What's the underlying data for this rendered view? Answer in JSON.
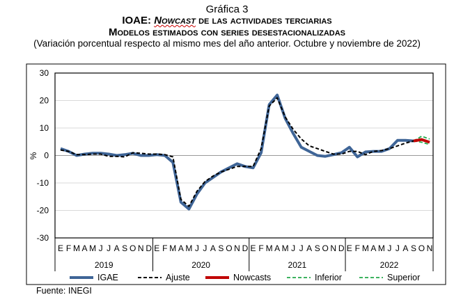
{
  "header": {
    "figure_label": "Gráfica 3",
    "title_prefix": "IOAE: ",
    "title_emph": "Nowcast",
    "title_rest": " de las actividades terciarias",
    "subtitle": "Modelos estimados con series desestacionalizadas",
    "note": "(Variación porcentual respecto al mismo mes del año anterior. Octubre y noviembre de 2022)"
  },
  "source": "Fuente: INEGI",
  "chart_data": {
    "type": "line",
    "ylabel": "%",
    "ylim": [
      -30,
      30
    ],
    "yticks": [
      30,
      20,
      10,
      0,
      -10,
      -20,
      -30
    ],
    "grid": true,
    "legend_position": "bottom",
    "month_labels": [
      "E",
      "F",
      "M",
      "A",
      "M",
      "J",
      "J",
      "A",
      "S",
      "O",
      "N",
      "D"
    ],
    "years": [
      "2019",
      "2020",
      "2021",
      "2022"
    ],
    "n_months": 47,
    "series": [
      {
        "name": "IGAE",
        "color": "#3f6597",
        "style": "solid",
        "start": 0,
        "values": [
          2.5,
          1.5,
          0,
          0.5,
          0.8,
          0.8,
          0.5,
          0,
          0.3,
          0.8,
          0,
          0,
          0.3,
          0,
          -2.5,
          -17,
          -19.5,
          -14,
          -10,
          -8,
          -6,
          -4.5,
          -3,
          -4,
          -4.5,
          1,
          18.5,
          22,
          13.5,
          8,
          3,
          1.5,
          0,
          -0.3,
          0.3,
          1,
          3,
          -0.5,
          1.3,
          1.5,
          1.5,
          2.5,
          5.5,
          5.5,
          5.3
        ]
      },
      {
        "name": "Ajuste",
        "color": "#000000",
        "style": "dashed",
        "start": 0,
        "values": [
          2,
          1.5,
          0.3,
          0.3,
          0.5,
          0.5,
          -0.3,
          -0.3,
          -0.5,
          1,
          0.8,
          0.5,
          0.5,
          0.3,
          -0.5,
          -16,
          -18.5,
          -13,
          -9.5,
          -7.5,
          -6,
          -5,
          -4,
          -4,
          -4,
          2.5,
          18,
          21,
          14,
          9.5,
          6,
          3.5,
          2.5,
          1.5,
          0.5,
          0.5,
          1.5,
          1.5,
          0.3,
          1.5,
          1.8,
          2.5,
          3.5,
          4.5,
          5.3
        ]
      },
      {
        "name": "Nowcasts",
        "color": "#c00000",
        "style": "solid",
        "start": 44,
        "values": [
          5.3,
          5.8,
          4.8
        ]
      },
      {
        "name": "Inferior",
        "color": "#22a84a",
        "style": "dashed",
        "start": 44,
        "values": [
          5.3,
          4.8,
          4.0
        ]
      },
      {
        "name": "Superior",
        "color": "#22a84a",
        "style": "dashed",
        "start": 44,
        "values": [
          5.3,
          7.0,
          6.0
        ]
      }
    ]
  }
}
